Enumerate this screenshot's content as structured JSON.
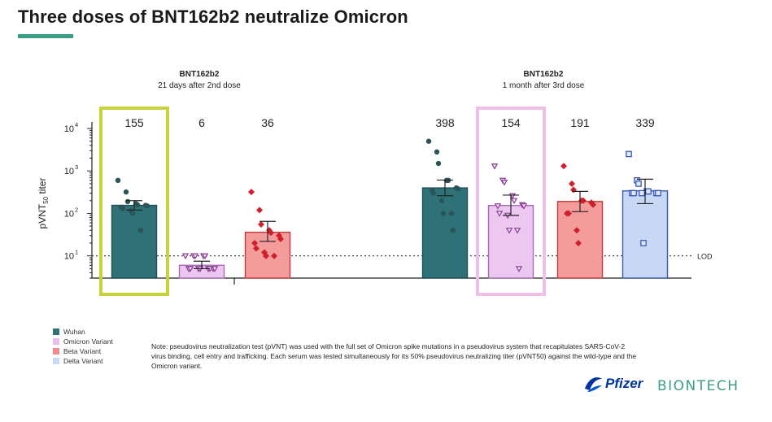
{
  "header": {
    "title": "Three doses of BNT162b2 neutralize Omicron"
  },
  "chart_data": {
    "type": "bar",
    "yscale": "log",
    "ylabel": "pVNT50 titer",
    "ylim": [
      3,
      10000
    ],
    "yticks": [
      10,
      100,
      1000,
      10000
    ],
    "lod": {
      "value": 10,
      "label": "LOD"
    },
    "groups": [
      {
        "title": "BNT162b2",
        "subtitle": "21 days after 2nd dose",
        "highlight_color": "#c6d33a",
        "highlight_index": 0,
        "bars": [
          {
            "series": "Wuhan",
            "value": 155,
            "label": "155",
            "err": [
              120,
              200
            ],
            "points": [
              600,
              320,
              190,
              170,
              160,
              155,
              150,
              140,
              130,
              115,
              100,
              40
            ]
          },
          {
            "series": "Omicron Variant",
            "value": 6,
            "label": "6",
            "err": [
              5,
              7.5
            ],
            "points": [
              10,
              10,
              10,
              10,
              10,
              5,
              5,
              5,
              5,
              5,
              5,
              5,
              5
            ]
          },
          {
            "series": "Beta Variant",
            "value": 36,
            "label": "36",
            "err": [
              22,
              65
            ],
            "points": [
              320,
              120,
              55,
              40,
              35,
              30,
              25,
              20,
              15,
              12,
              10,
              10
            ]
          }
        ]
      },
      {
        "title": "BNT162b2",
        "subtitle": "1 month after 3rd dose",
        "highlight_color": "#f0bfe8",
        "highlight_index": 1,
        "bars": [
          {
            "series": "Wuhan",
            "value": 398,
            "label": "398",
            "err": [
              260,
              610
            ],
            "points": [
              5000,
              2800,
              1500,
              600,
              600,
              400,
              380,
              350,
              300,
              200,
              100,
              100,
              40
            ]
          },
          {
            "series": "Omicron Variant",
            "value": 154,
            "label": "154",
            "err": [
              90,
              270
            ],
            "points": [
              1300,
              600,
              540,
              260,
              200,
              160,
              150,
              150,
              100,
              90,
              40,
              40,
              5
            ]
          },
          {
            "series": "Beta Variant",
            "value": 191,
            "label": "191",
            "err": [
              110,
              330
            ],
            "points": [
              1300,
              500,
              360,
              200,
              200,
              180,
              160,
              100,
              100,
              40,
              20
            ]
          },
          {
            "series": "Delta Variant",
            "value": 339,
            "label": "339",
            "err": [
              170,
              640
            ],
            "points": [
              2500,
              600,
              500,
              330,
              330,
              300,
              300,
              300,
              300,
              300,
              20
            ]
          }
        ]
      }
    ],
    "legend": [
      {
        "name": "Wuhan",
        "color": "#2e7278"
      },
      {
        "name": "Omicron Variant",
        "color": "#e8c0ec"
      },
      {
        "name": "Beta Variant",
        "color": "#f28b8b"
      },
      {
        "name": "Delta Variant",
        "color": "#c9d9f4"
      }
    ],
    "legend_position": "bottom-left",
    "grid": false
  },
  "series_style": {
    "Wuhan": {
      "fill": "#2e7278",
      "stroke": "#1e4f55",
      "point": "#2a5457",
      "marker": "circle"
    },
    "Omicron Variant": {
      "fill": "#ecc7ef",
      "stroke": "#a86cb4",
      "point": "#8a3f96",
      "marker": "triangle-down"
    },
    "Beta Variant": {
      "fill": "#f49c9c",
      "stroke": "#c73a3a",
      "point": "#d01f2a",
      "marker": "diamond"
    },
    "Delta Variant": {
      "fill": "#c7d8f5",
      "stroke": "#3a58b0",
      "point": "#2f4fb0",
      "marker": "square"
    }
  },
  "note": "Note: pseudovirus neutralization test (pVNT) was used with the full set of Omicron spike mutations in a pseudovirus system that recapitulates SARS-CoV-2 virus binding, cell entry and trafficking. Each serum was tested simultaneously for its 50% pseudovirus neutralizing titer (pVNT50) against the wild-type and the Omicron variant.",
  "logos": {
    "pfizer": "Pfizer",
    "biontech": "BIONTECH"
  }
}
